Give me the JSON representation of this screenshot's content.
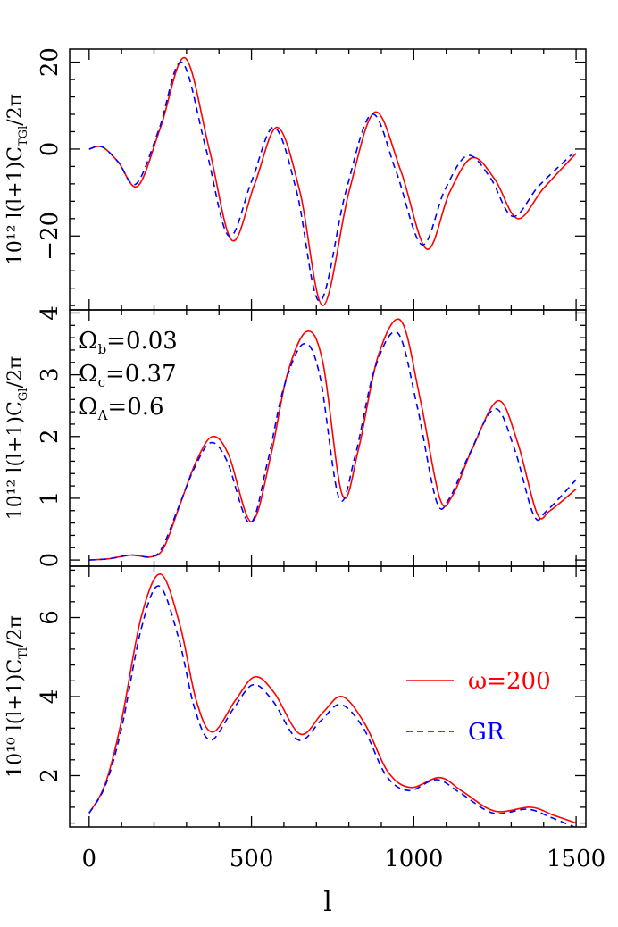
{
  "figure": {
    "xlabel": "l",
    "x_range": [
      -60,
      1530
    ],
    "x_ticks": [
      0,
      500,
      1000,
      1500
    ],
    "colors": {
      "omega": "#ff0000",
      "gr": "#0000ff",
      "axes": "#000000"
    }
  },
  "panels": [
    {
      "ylabel_prefix": "10¹² l(l+1)C",
      "ylabel_sub": "TGl",
      "ylabel_suffix": "/2π",
      "ylim": [
        -37,
        23
      ],
      "yticks": [
        -20,
        0,
        20
      ],
      "yticklabels": [
        "−20",
        "0",
        "20"
      ]
    },
    {
      "ylabel_prefix": "10¹² l(l+1)C",
      "ylabel_sub": "Gl",
      "ylabel_suffix": "/2π",
      "ylim": [
        -0.1,
        4.05
      ],
      "yticks": [
        0,
        1,
        2,
        3,
        4
      ],
      "yticklabels": [
        "0",
        "1",
        "2",
        "3",
        "4"
      ],
      "params": [
        {
          "sym": "Ω",
          "sub": "b",
          "val": "=0.03"
        },
        {
          "sym": "Ω",
          "sub": "c",
          "val": "=0.37"
        },
        {
          "sym": "Ω",
          "sub": "Λ",
          "val": "=0.6"
        }
      ]
    },
    {
      "ylabel_prefix": "10¹⁰ l(l+1)C",
      "ylabel_sub": "Tl",
      "ylabel_suffix": "/2π",
      "ylim": [
        0.7,
        7.3
      ],
      "yticks": [
        2,
        4,
        6
      ],
      "yticklabels": [
        "2",
        "4",
        "6"
      ]
    }
  ],
  "legend": [
    {
      "label": "ω=200",
      "style": "solid"
    },
    {
      "label": "GR",
      "style": "dashed"
    }
  ],
  "chart_data": [
    {
      "type": "line",
      "series": [
        {
          "name": "ω=200",
          "x": [
            0,
            40,
            90,
            150,
            220,
            295,
            370,
            440,
            510,
            580,
            650,
            720,
            800,
            880,
            960,
            1040,
            1110,
            1180,
            1250,
            1320,
            1400,
            1500
          ],
          "y": [
            0,
            0.5,
            -3,
            -8.5,
            5,
            21,
            0,
            -21,
            -8,
            5,
            -10,
            -36,
            -10,
            8.5,
            -5,
            -23,
            -10,
            -2,
            -7,
            -16,
            -9,
            -1
          ]
        },
        {
          "name": "GR",
          "x": [
            0,
            40,
            90,
            145,
            215,
            285,
            360,
            430,
            500,
            570,
            640,
            710,
            790,
            870,
            945,
            1025,
            1095,
            1165,
            1235,
            1305,
            1385,
            1490
          ],
          "y": [
            0,
            0.5,
            -3,
            -8,
            4.5,
            20,
            0,
            -20,
            -7.5,
            5,
            -10,
            -35,
            -10,
            8,
            -5,
            -22,
            -9.5,
            -1.5,
            -6.5,
            -15.5,
            -8.5,
            -1
          ]
        }
      ]
    },
    {
      "type": "line",
      "series": [
        {
          "name": "ω=200",
          "x": [
            0,
            60,
            130,
            190,
            230,
            280,
            330,
            380,
            430,
            500,
            560,
            610,
            670,
            720,
            780,
            830,
            890,
            960,
            1020,
            1080,
            1120,
            1180,
            1260,
            1320,
            1380,
            1420,
            1500
          ],
          "y": [
            0,
            0.02,
            0.08,
            0.05,
            0.2,
            0.9,
            1.6,
            2.0,
            1.7,
            0.62,
            1.7,
            3.0,
            3.7,
            3.2,
            1.05,
            1.8,
            3.3,
            3.88,
            2.6,
            1.0,
            1.05,
            1.8,
            2.58,
            1.9,
            0.75,
            0.8,
            1.15
          ]
        },
        {
          "name": "GR",
          "x": [
            0,
            60,
            130,
            190,
            225,
            275,
            325,
            375,
            425,
            495,
            550,
            600,
            660,
            710,
            770,
            820,
            880,
            950,
            1010,
            1070,
            1110,
            1170,
            1250,
            1310,
            1370,
            1410,
            1500
          ],
          "y": [
            0,
            0.02,
            0.08,
            0.05,
            0.2,
            0.85,
            1.5,
            1.9,
            1.6,
            0.6,
            1.6,
            2.8,
            3.5,
            3.0,
            1.0,
            1.7,
            3.1,
            3.68,
            2.5,
            0.95,
            1.0,
            1.7,
            2.45,
            1.8,
            0.72,
            0.8,
            1.3
          ]
        }
      ]
    },
    {
      "type": "line",
      "series": [
        {
          "name": "ω=200",
          "x": [
            0,
            50,
            100,
            160,
            220,
            280,
            330,
            380,
            450,
            510,
            570,
            650,
            720,
            780,
            850,
            920,
            990,
            1080,
            1150,
            1250,
            1360,
            1430,
            1500
          ],
          "y": [
            1.05,
            1.8,
            3.4,
            6.0,
            7.1,
            5.8,
            3.9,
            3.1,
            3.9,
            4.5,
            4.1,
            3.05,
            3.6,
            4.0,
            3.3,
            2.1,
            1.7,
            1.95,
            1.6,
            1.1,
            1.2,
            1.0,
            0.8
          ]
        },
        {
          "name": "GR",
          "x": [
            0,
            50,
            100,
            160,
            215,
            275,
            325,
            375,
            445,
            505,
            565,
            645,
            715,
            775,
            845,
            915,
            985,
            1070,
            1145,
            1245,
            1350,
            1420,
            1500
          ],
          "y": [
            1.05,
            1.75,
            3.2,
            5.7,
            6.8,
            5.5,
            3.7,
            2.9,
            3.7,
            4.3,
            3.9,
            2.9,
            3.4,
            3.8,
            3.2,
            2.0,
            1.62,
            1.9,
            1.55,
            1.05,
            1.15,
            0.95,
            0.68
          ]
        }
      ]
    }
  ]
}
